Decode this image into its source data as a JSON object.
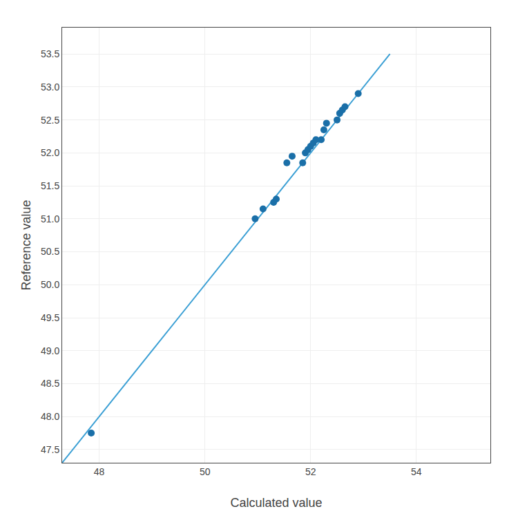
{
  "chart_data": {
    "type": "scatter",
    "xlabel": "Calculated value",
    "ylabel": "Reference value",
    "series": [
      {
        "type": "line",
        "color": "#3a9fd4",
        "line_style": "solid",
        "x": [
          47.3,
          53.5
        ],
        "values": [
          47.3,
          53.5
        ]
      },
      {
        "type": "scatter",
        "color": "#1a6fa8",
        "marker": "circle",
        "x": [
          47.85,
          50.95,
          51.1,
          51.3,
          51.35,
          51.55,
          51.65,
          51.85,
          51.9,
          51.95,
          52.0,
          52.05,
          52.1,
          52.2,
          52.25,
          52.3,
          52.5,
          52.55,
          52.6,
          52.65,
          52.9
        ],
        "values": [
          47.75,
          51.0,
          51.15,
          51.25,
          51.3,
          51.85,
          51.95,
          51.85,
          52.0,
          52.05,
          52.1,
          52.15,
          52.2,
          52.2,
          52.35,
          52.45,
          52.5,
          52.6,
          52.65,
          52.7,
          52.9
        ]
      }
    ],
    "xlim": [
      47.3,
      55.4
    ],
    "ylim": [
      47.3,
      53.9
    ],
    "xticks": [
      48,
      50,
      52,
      54
    ],
    "yticks": [
      47.5,
      {
        "value": 48,
        "label": "48.0"
      },
      48.5,
      {
        "value": 49,
        "label": "49.0"
      },
      49.5,
      {
        "value": 50,
        "label": "50.0"
      },
      50.5,
      {
        "value": 51,
        "label": "51.0"
      },
      51.5,
      {
        "value": 52,
        "label": "52.0"
      },
      52.5,
      {
        "value": 53,
        "label": "53.0"
      },
      53.5
    ],
    "grid": true
  }
}
